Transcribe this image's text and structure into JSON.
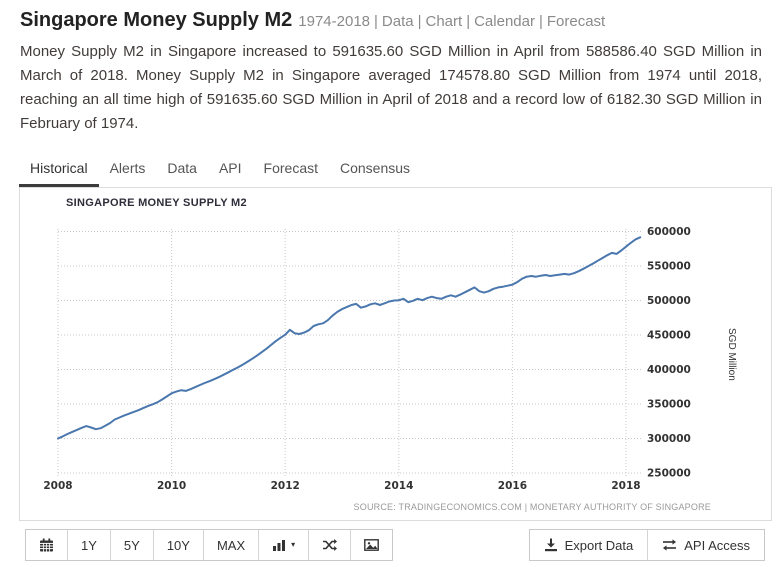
{
  "header": {
    "title": "Singapore Money Supply M2",
    "range": "1974-2018",
    "sep": "|",
    "links": [
      "Data",
      "Chart",
      "Calendar",
      "Forecast"
    ]
  },
  "summary": "Money Supply M2 in Singapore increased to 591635.60 SGD Million in April from 588586.40 SGD Million in March of 2018. Money Supply M2 in Singapore averaged 174578.80 SGD Million from 1974 until 2018, reaching an all time high of 591635.60 SGD Million in April of 2018 and a record low of 6182.30 SGD Million in February of 1974.",
  "tabs": {
    "items": [
      {
        "label": "Historical",
        "active": true
      },
      {
        "label": "Alerts",
        "active": false
      },
      {
        "label": "Data",
        "active": false
      },
      {
        "label": "API",
        "active": false
      },
      {
        "label": "Forecast",
        "active": false
      },
      {
        "label": "Consensus",
        "active": false
      }
    ]
  },
  "chart_data": {
    "type": "line",
    "title": "SINGAPORE MONEY SUPPLY M2",
    "ylabel": "SGD Million",
    "source": "SOURCE: TRADINGECONOMICS.COM | MONETARY AUTHORITY OF SINGAPORE",
    "x_start": "2008-01",
    "x_end": "2018-04",
    "x_interval": "monthly",
    "xticks": [
      "2008",
      "2010",
      "2012",
      "2014",
      "2016",
      "2018"
    ],
    "yticks": [
      250000,
      300000,
      350000,
      400000,
      450000,
      500000,
      550000,
      600000
    ],
    "ylim": [
      250000,
      600000
    ],
    "grid": "dotted",
    "legend": "none",
    "line_color": "#4a77ad",
    "grid_color": "#c9c9c9",
    "tick_color": "#333333",
    "series": [
      {
        "name": "Singapore Money Supply M2",
        "values": [
          300000,
          303000,
          306500,
          309500,
          312500,
          315500,
          318000,
          316000,
          313500,
          315000,
          318500,
          322500,
          327500,
          330500,
          333500,
          336000,
          338500,
          341000,
          344000,
          347000,
          349500,
          352500,
          356500,
          361000,
          365500,
          368000,
          370000,
          369000,
          371500,
          374500,
          377500,
          380500,
          383000,
          386000,
          389000,
          392500,
          396000,
          399500,
          403000,
          407000,
          411000,
          415500,
          420000,
          425000,
          430000,
          435500,
          441000,
          446000,
          450500,
          457500,
          452500,
          451500,
          453500,
          457000,
          463000,
          465500,
          467000,
          471500,
          478000,
          483500,
          487500,
          490500,
          493500,
          495000,
          489500,
          491500,
          494500,
          496000,
          493500,
          496000,
          498500,
          500000,
          500500,
          502500,
          497500,
          499500,
          502500,
          500500,
          503500,
          505500,
          503500,
          502500,
          505500,
          507500,
          505500,
          508500,
          512000,
          515500,
          519000,
          513500,
          511500,
          513500,
          517000,
          519000,
          520000,
          521500,
          523000,
          526500,
          531500,
          534500,
          535500,
          534500,
          536000,
          537000,
          535500,
          536500,
          537500,
          538500,
          537500,
          539500,
          542500,
          546000,
          549500,
          553500,
          557500,
          561500,
          565500,
          569000,
          567500,
          572500,
          578000,
          583500,
          588586.4,
          591635.6
        ]
      }
    ]
  },
  "toolbar": {
    "ranges": [
      "1Y",
      "5Y",
      "10Y",
      "MAX"
    ],
    "export_label": "Export Data",
    "api_label": "API Access",
    "caret": "▾",
    "icons": {
      "calendar": "calendar-grid",
      "chart_type": "column-chart",
      "compare": "crossed-arrows",
      "image": "picture",
      "export": "download-arrow",
      "api": "transfer-arrows"
    }
  }
}
